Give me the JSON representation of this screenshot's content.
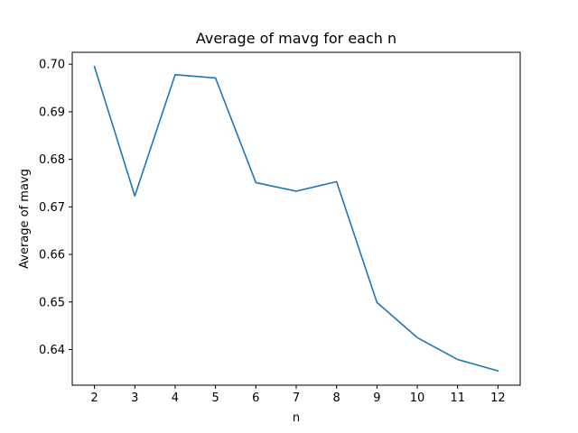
{
  "chart_data": {
    "type": "line",
    "title": "Average of mavg for each n",
    "xlabel": "n",
    "ylabel": "Average of mavg",
    "x": [
      2,
      3,
      4,
      5,
      6,
      7,
      8,
      9,
      10,
      11,
      12
    ],
    "series": [
      {
        "values": [
          0.6995,
          0.6723,
          0.6978,
          0.6971,
          0.6751,
          0.6733,
          0.6753,
          0.6499,
          0.6425,
          0.6379,
          0.6355
        ]
      }
    ],
    "x_ticks": [
      "2",
      "3",
      "4",
      "5",
      "6",
      "7",
      "8",
      "9",
      "10",
      "11",
      "12"
    ],
    "y_ticks": [
      "0.64",
      "0.65",
      "0.66",
      "0.67",
      "0.68",
      "0.69",
      "0.70"
    ],
    "xlim": [
      1.45,
      12.55
    ],
    "ylim": [
      0.6325,
      0.7025
    ],
    "grid": false,
    "line_color": "#1f77b4"
  }
}
